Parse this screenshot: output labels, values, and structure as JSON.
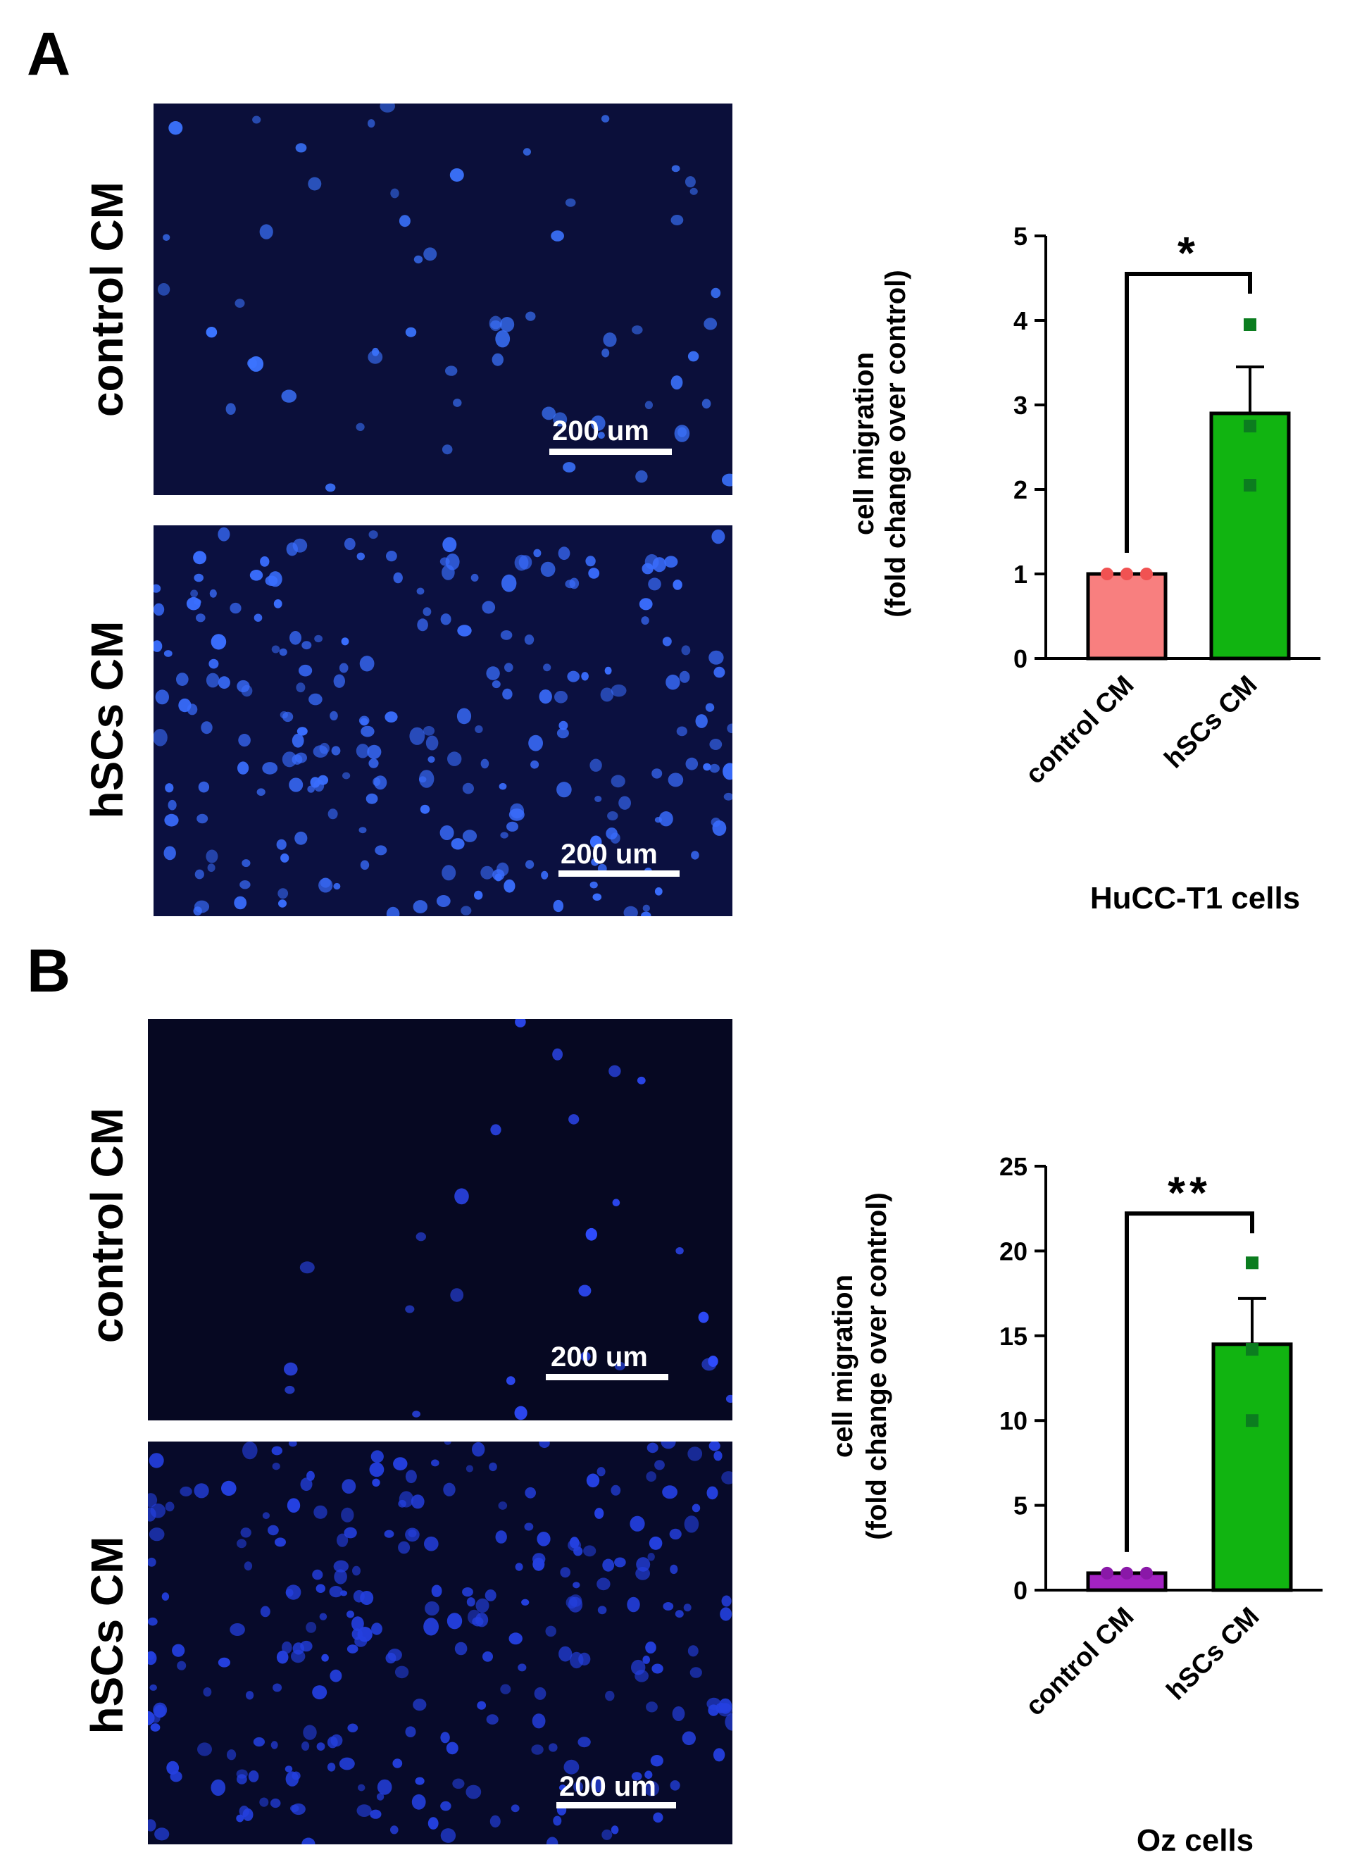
{
  "panels": [
    {
      "letter": "A",
      "rows": [
        {
          "label": "control CM",
          "scale": "200 um"
        },
        {
          "label": "hSCs CM",
          "scale": "200 um"
        }
      ]
    },
    {
      "letter": "B",
      "rows": [
        {
          "label": "control CM",
          "scale": "200 um"
        },
        {
          "label": "hSCs CM",
          "scale": "200 um"
        }
      ]
    }
  ],
  "chart_data": [
    {
      "type": "bar",
      "title": "HuCC-T1 cells",
      "ylabel_line1": "cell migration",
      "ylabel_line2": "(fold change over control)",
      "categories": [
        "control CM",
        "hSCs CM"
      ],
      "values": [
        1.0,
        2.9
      ],
      "errors": [
        0,
        0.55
      ],
      "points": [
        [
          1.0,
          1.0,
          1.0
        ],
        [
          3.95,
          2.75,
          2.05
        ]
      ],
      "colors": [
        "#f87f7f",
        "#11b411"
      ],
      "point_colors": [
        "#f15252",
        "#0b7d1f"
      ],
      "ylim": [
        0,
        5
      ],
      "yticks": [
        0,
        1,
        2,
        3,
        4,
        5
      ],
      "significance": "*"
    },
    {
      "type": "bar",
      "title": "Oz cells",
      "ylabel_line1": "cell migration",
      "ylabel_line2": "(fold change over control)",
      "categories": [
        "control CM",
        "hSCs CM"
      ],
      "values": [
        1.0,
        14.5
      ],
      "errors": [
        0,
        2.7
      ],
      "points": [
        [
          1.0,
          1.0,
          1.0
        ],
        [
          19.3,
          14.2,
          10.0
        ]
      ],
      "colors": [
        "#a322c2",
        "#11b411"
      ],
      "point_colors": [
        "#8a18a8",
        "#0b7d1f"
      ],
      "ylim": [
        0,
        25
      ],
      "yticks": [
        0,
        5,
        10,
        15,
        20,
        25
      ],
      "significance": "**"
    }
  ]
}
